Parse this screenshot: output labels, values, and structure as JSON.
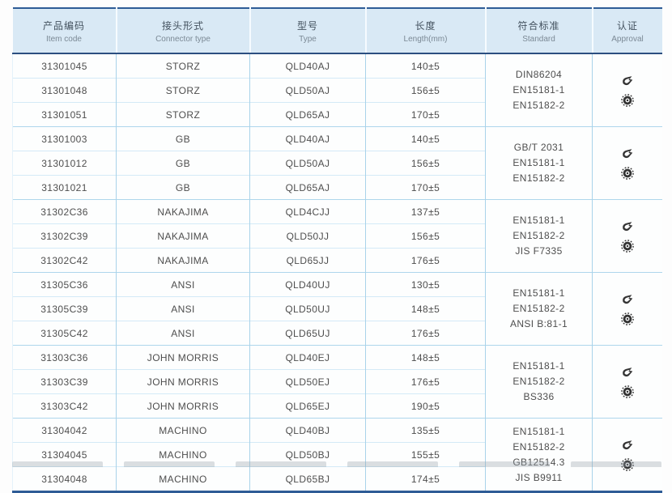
{
  "table": {
    "header": [
      {
        "zh": "产品编码",
        "en": "Item code"
      },
      {
        "zh": "接头形式",
        "en": "Connector type"
      },
      {
        "zh": "型号",
        "en": "Type"
      },
      {
        "zh": "长度",
        "en": "Length(mm)"
      },
      {
        "zh": "符合标准",
        "en": "Standard"
      },
      {
        "zh": "认证",
        "en": "Approval"
      }
    ],
    "groups": [
      {
        "rows": [
          [
            "31301045",
            "STORZ",
            "QLD40AJ",
            "140±5"
          ],
          [
            "31301048",
            "STORZ",
            "QLD50AJ",
            "156±5"
          ],
          [
            "31301051",
            "STORZ",
            "QLD65AJ",
            "170±5"
          ]
        ],
        "standards": [
          "DIN86204",
          "EN15181-1",
          "EN15182-2"
        ]
      },
      {
        "rows": [
          [
            "31301003",
            "GB",
            "QLD40AJ",
            "140±5"
          ],
          [
            "31301012",
            "GB",
            "QLD50AJ",
            "156±5"
          ],
          [
            "31301021",
            "GB",
            "QLD65AJ",
            "170±5"
          ]
        ],
        "standards": [
          "GB/T 2031",
          "EN15181-1",
          "EN15182-2"
        ]
      },
      {
        "rows": [
          [
            "31302C36",
            "NAKAJIMA",
            "QLD4CJJ",
            "137±5"
          ],
          [
            "31302C39",
            "NAKAJIMA",
            "QLD50JJ",
            "156±5"
          ],
          [
            "31302C42",
            "NAKAJIMA",
            "QLD65JJ",
            "176±5"
          ]
        ],
        "standards": [
          "EN15181-1",
          "EN15182-2",
          "JIS F7335"
        ]
      },
      {
        "rows": [
          [
            "31305C36",
            "ANSI",
            "QLD40UJ",
            "130±5"
          ],
          [
            "31305C39",
            "ANSI",
            "QLD50UJ",
            "148±5"
          ],
          [
            "31305C42",
            "ANSI",
            "QLD65UJ",
            "176±5"
          ]
        ],
        "standards": [
          "EN15181-1",
          "EN15182-2",
          "ANSI B:81-1"
        ]
      },
      {
        "rows": [
          [
            "31303C36",
            "JOHN MORRIS",
            "QLD40EJ",
            "148±5"
          ],
          [
            "31303C39",
            "JOHN MORRIS",
            "QLD50EJ",
            "176±5"
          ],
          [
            "31303C42",
            "JOHN MORRIS",
            "QLD65EJ",
            "190±5"
          ]
        ],
        "standards": [
          "EN15181-1",
          "EN15182-2",
          "BS336"
        ]
      },
      {
        "rows": [
          [
            "31304042",
            "MACHINO",
            "QLD40BJ",
            "135±5"
          ],
          [
            "31304045",
            "MACHINO",
            "QLD50BJ",
            "155±5"
          ],
          [
            "31304048",
            "MACHINO",
            "QLD65BJ",
            "174±5"
          ]
        ],
        "standards": [
          "EN15181-1",
          "EN15182-2",
          "GB12514.3",
          "JIS B9911"
        ]
      }
    ],
    "approval_icons": [
      "certification-logo-icon",
      "certification-seal-icon"
    ],
    "colors": {
      "accent_border": "#2e5c96",
      "header_bg": "#d9e9f5",
      "grid_line": "#a9d3ea",
      "row_line": "#d4eaf7",
      "text": "#4e4e4e",
      "icon": "#333333"
    }
  }
}
